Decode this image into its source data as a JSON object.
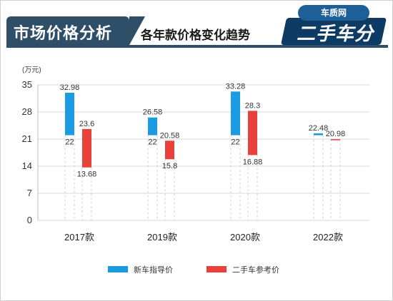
{
  "header": {
    "title": "市场价格分析",
    "subtitle": "各年款价格变化趋势",
    "logo_badge": "车质网",
    "logo_text": "二手车分析"
  },
  "colors": {
    "header_bg": "#2f4f69",
    "new_car": "#1a9ae0",
    "used_car": "#e8413b"
  },
  "chart_data": {
    "type": "bar",
    "unit_label": "(万元)",
    "yticks": [
      35,
      28,
      21,
      14,
      7,
      0
    ],
    "ylim": [
      0,
      35
    ],
    "categories": [
      "2017款",
      "2019款",
      "2020款",
      "2022款"
    ],
    "series": [
      {
        "name": "新车指导价",
        "color": "#1a9ae0",
        "ranges": [
          [
            22,
            32.98
          ],
          [
            22,
            26.58
          ],
          [
            22,
            33.28
          ],
          [
            22,
            22.48
          ]
        ],
        "low_labels": [
          "22",
          "22",
          "22",
          ""
        ],
        "high_labels": [
          "32.98",
          "26.58",
          "33.28",
          "22.48"
        ]
      },
      {
        "name": "二手车参考价",
        "color": "#e8413b",
        "ranges": [
          [
            13.68,
            23.6
          ],
          [
            15.8,
            20.58
          ],
          [
            16.88,
            28.3
          ],
          [
            20.98,
            20.98
          ]
        ],
        "low_labels": [
          "13.68",
          "15.8",
          "16.88",
          ""
        ],
        "high_labels": [
          "23.6",
          "20.58",
          "28.3",
          "20.98"
        ]
      }
    ],
    "legend_position": "bottom"
  }
}
